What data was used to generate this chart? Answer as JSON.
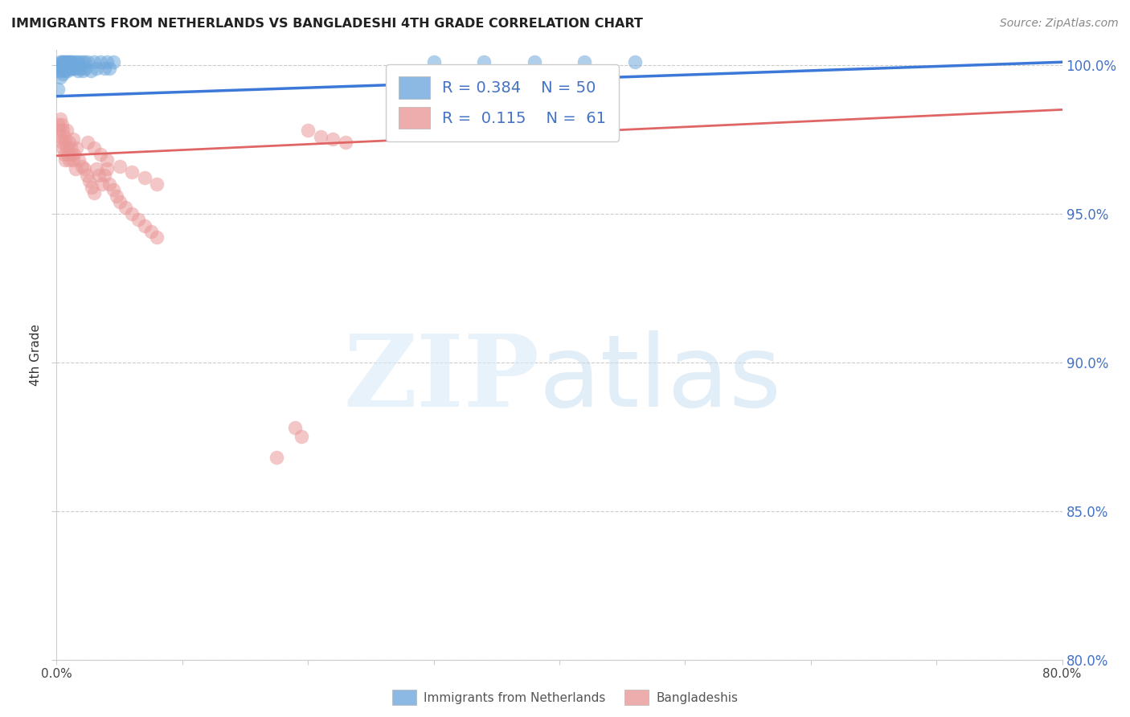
{
  "title": "IMMIGRANTS FROM NETHERLANDS VS BANGLADESHI 4TH GRADE CORRELATION CHART",
  "source": "Source: ZipAtlas.com",
  "ylabel_label": "4th Grade",
  "x_min": 0.0,
  "x_max": 0.8,
  "y_min": 0.8,
  "y_max": 1.005,
  "y_ticks": [
    0.8,
    0.85,
    0.9,
    0.95,
    1.0
  ],
  "x_tick_positions": [
    0.0,
    0.1,
    0.2,
    0.3,
    0.4,
    0.5,
    0.6,
    0.7,
    0.8
  ],
  "blue_color": "#6fa8dc",
  "pink_color": "#ea9999",
  "blue_line_color": "#3c78d8",
  "pink_line_color": "#e06666",
  "legend_blue_R": "0.384",
  "legend_blue_N": "50",
  "legend_pink_R": "0.115",
  "legend_pink_N": "61",
  "blue_scatter_x": [
    0.001,
    0.002,
    0.002,
    0.003,
    0.003,
    0.003,
    0.004,
    0.004,
    0.005,
    0.005,
    0.005,
    0.006,
    0.006,
    0.007,
    0.007,
    0.008,
    0.008,
    0.009,
    0.009,
    0.01,
    0.01,
    0.011,
    0.011,
    0.012,
    0.012,
    0.013,
    0.014,
    0.015,
    0.016,
    0.017,
    0.018,
    0.019,
    0.02,
    0.021,
    0.022,
    0.023,
    0.025,
    0.027,
    0.03,
    0.032,
    0.035,
    0.038,
    0.04,
    0.042,
    0.045,
    0.3,
    0.34,
    0.38,
    0.42,
    0.46
  ],
  "blue_scatter_y": [
    0.992,
    0.998,
    1.0,
    0.996,
    0.999,
    1.001,
    0.998,
    1.001,
    0.997,
    1.0,
    1.001,
    0.999,
    1.001,
    0.998,
    1.001,
    0.999,
    1.001,
    0.998,
    1.001,
    0.999,
    1.001,
    0.999,
    1.001,
    0.999,
    1.001,
    0.999,
    1.001,
    0.999,
    1.001,
    0.998,
    1.001,
    0.999,
    1.001,
    0.998,
    1.001,
    0.999,
    1.001,
    0.998,
    1.001,
    0.999,
    1.001,
    0.999,
    1.001,
    0.999,
    1.001,
    1.001,
    1.001,
    1.001,
    1.001,
    1.001
  ],
  "pink_scatter_x": [
    0.001,
    0.002,
    0.003,
    0.003,
    0.004,
    0.004,
    0.005,
    0.005,
    0.006,
    0.006,
    0.007,
    0.007,
    0.008,
    0.008,
    0.009,
    0.01,
    0.01,
    0.011,
    0.012,
    0.013,
    0.013,
    0.014,
    0.015,
    0.016,
    0.018,
    0.02,
    0.022,
    0.024,
    0.026,
    0.028,
    0.03,
    0.032,
    0.034,
    0.036,
    0.038,
    0.04,
    0.042,
    0.045,
    0.048,
    0.05,
    0.055,
    0.06,
    0.065,
    0.07,
    0.075,
    0.08,
    0.025,
    0.03,
    0.035,
    0.04,
    0.05,
    0.06,
    0.07,
    0.08,
    0.2,
    0.21,
    0.22,
    0.23,
    0.175,
    0.19,
    0.195
  ],
  "pink_scatter_y": [
    0.98,
    0.978,
    0.976,
    0.982,
    0.974,
    0.98,
    0.972,
    0.978,
    0.97,
    0.976,
    0.968,
    0.974,
    0.972,
    0.978,
    0.97,
    0.968,
    0.974,
    0.972,
    0.97,
    0.968,
    0.975,
    0.97,
    0.965,
    0.972,
    0.968,
    0.966,
    0.965,
    0.963,
    0.961,
    0.959,
    0.957,
    0.965,
    0.963,
    0.96,
    0.963,
    0.965,
    0.96,
    0.958,
    0.956,
    0.954,
    0.952,
    0.95,
    0.948,
    0.946,
    0.944,
    0.942,
    0.974,
    0.972,
    0.97,
    0.968,
    0.966,
    0.964,
    0.962,
    0.96,
    0.978,
    0.976,
    0.975,
    0.974,
    0.868,
    0.878,
    0.875
  ],
  "y_tick_labels": [
    "80.0%",
    "85.0%",
    "90.0%",
    "95.0%",
    "100.0%"
  ]
}
